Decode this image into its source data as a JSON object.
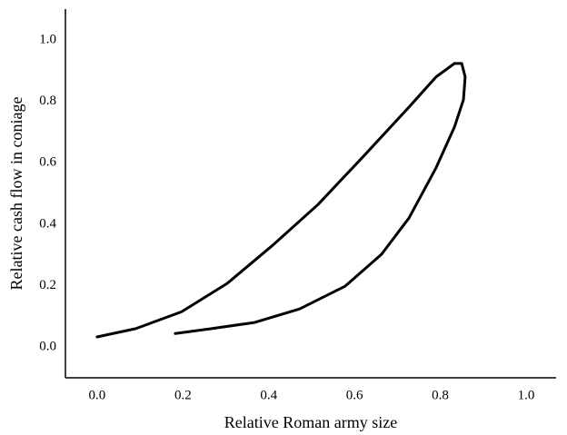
{
  "chart_data": {
    "type": "line",
    "x_label": "Relative Roman army size",
    "y_label": "Relative cash flow in coniage",
    "series": [
      {
        "color": "#000000",
        "x": [
          0.0,
          0.09,
          0.197,
          0.303,
          0.409,
          0.515,
          0.621,
          0.727,
          0.79,
          0.833,
          0.85,
          0.858,
          0.854,
          0.833,
          0.79,
          0.727,
          0.663,
          0.578,
          0.472,
          0.367,
          0.261,
          0.182
        ],
        "values": [
          0.033,
          0.06,
          0.115,
          0.207,
          0.331,
          0.464,
          0.621,
          0.781,
          0.879,
          0.923,
          0.923,
          0.879,
          0.805,
          0.716,
          0.583,
          0.42,
          0.302,
          0.198,
          0.124,
          0.08,
          0.059,
          0.044
        ]
      }
    ],
    "xlim": [
      -0.074,
      1.07
    ],
    "ylim": [
      -0.1,
      1.1
    ],
    "xticks": [
      {
        "value": 0,
        "label": "0.0"
      },
      {
        "value": 0.2,
        "label": "0.2"
      },
      {
        "value": 0.4,
        "label": "0.4"
      },
      {
        "value": 0.6,
        "label": "0.6"
      },
      {
        "value": 0.8,
        "label": "0.8"
      },
      {
        "value": 1,
        "label": "1.0"
      }
    ],
    "yticks": [
      {
        "value": 0,
        "label": "0.0"
      },
      {
        "value": 0.2,
        "label": "0.2"
      },
      {
        "value": 0.4,
        "label": "0.4"
      },
      {
        "value": 0.6,
        "label": "0.6"
      },
      {
        "value": 0.8,
        "label": "0.8"
      },
      {
        "value": 1,
        "label": "1.0"
      }
    ]
  }
}
